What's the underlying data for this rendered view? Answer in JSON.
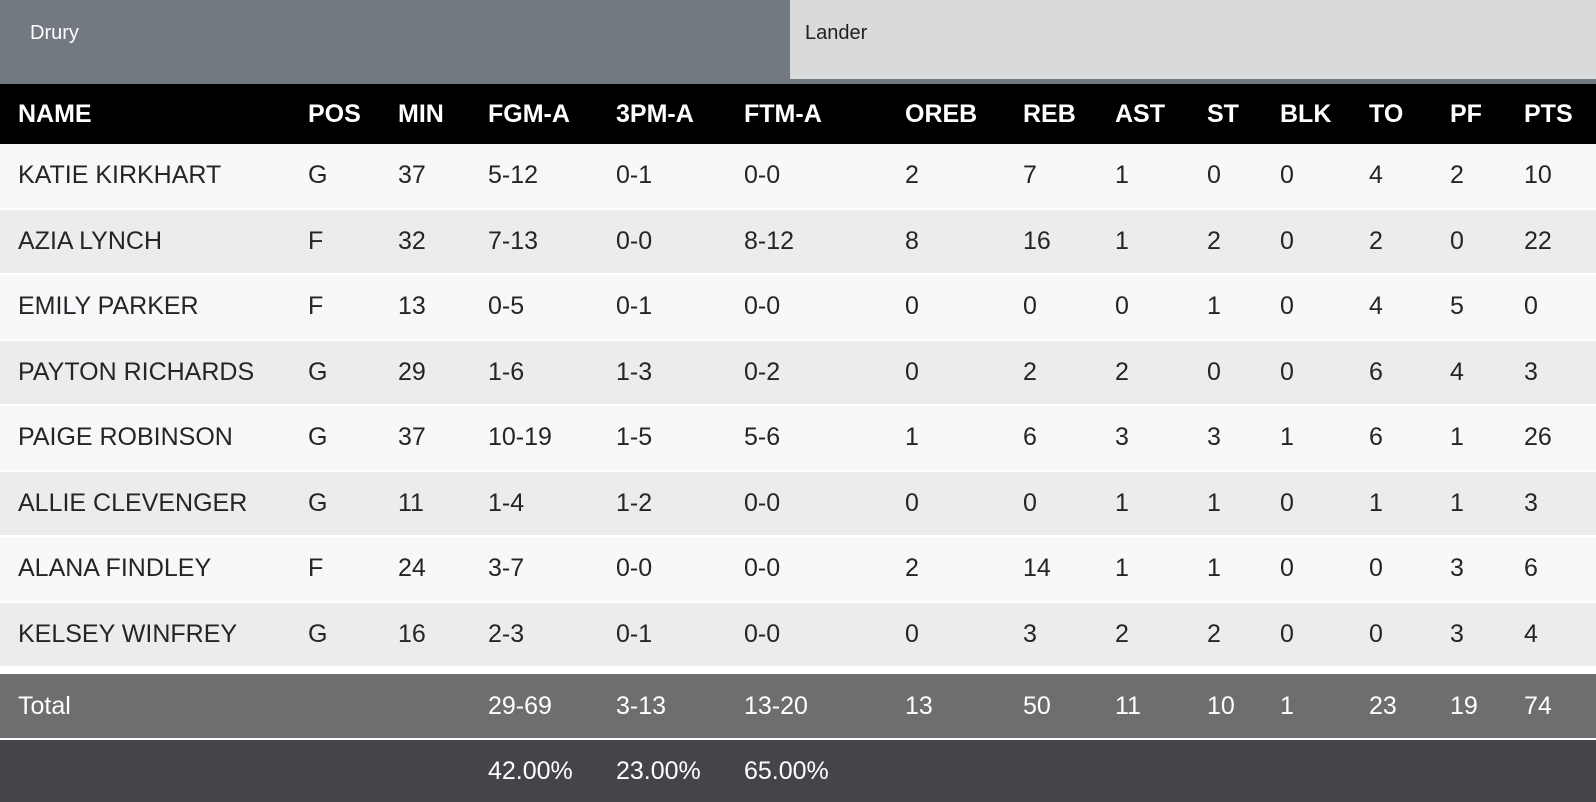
{
  "tabs": [
    {
      "label": "Drury",
      "active": true
    },
    {
      "label": "Lander",
      "active": false
    }
  ],
  "table": {
    "columns": [
      "NAME",
      "POS",
      "MIN",
      "FGM-A",
      "3PM-A",
      "FTM-A",
      "OREB",
      "REB",
      "AST",
      "ST",
      "BLK",
      "TO",
      "PF",
      "PTS"
    ],
    "players": [
      {
        "name": "KATIE KIRKHART",
        "pos": "G",
        "min": "37",
        "fgma": "5-12",
        "tpma": "0-1",
        "ftma": "0-0",
        "oreb": "2",
        "reb": "7",
        "ast": "1",
        "st": "0",
        "blk": "0",
        "to": "4",
        "pf": "2",
        "pts": "10"
      },
      {
        "name": "AZIA LYNCH",
        "pos": "F",
        "min": "32",
        "fgma": "7-13",
        "tpma": "0-0",
        "ftma": "8-12",
        "oreb": "8",
        "reb": "16",
        "ast": "1",
        "st": "2",
        "blk": "0",
        "to": "2",
        "pf": "0",
        "pts": "22"
      },
      {
        "name": "EMILY PARKER",
        "pos": "F",
        "min": "13",
        "fgma": "0-5",
        "tpma": "0-1",
        "ftma": "0-0",
        "oreb": "0",
        "reb": "0",
        "ast": "0",
        "st": "1",
        "blk": "0",
        "to": "4",
        "pf": "5",
        "pts": "0"
      },
      {
        "name": "PAYTON RICHARDS",
        "pos": "G",
        "min": "29",
        "fgma": "1-6",
        "tpma": "1-3",
        "ftma": "0-2",
        "oreb": "0",
        "reb": "2",
        "ast": "2",
        "st": "0",
        "blk": "0",
        "to": "6",
        "pf": "4",
        "pts": "3"
      },
      {
        "name": "PAIGE ROBINSON",
        "pos": "G",
        "min": "37",
        "fgma": "10-19",
        "tpma": "1-5",
        "ftma": "5-6",
        "oreb": "1",
        "reb": "6",
        "ast": "3",
        "st": "3",
        "blk": "1",
        "to": "6",
        "pf": "1",
        "pts": "26"
      },
      {
        "name": "ALLIE CLEVENGER",
        "pos": "G",
        "min": "11",
        "fgma": "1-4",
        "tpma": "1-2",
        "ftma": "0-0",
        "oreb": "0",
        "reb": "0",
        "ast": "1",
        "st": "1",
        "blk": "0",
        "to": "1",
        "pf": "1",
        "pts": "3"
      },
      {
        "name": "ALANA FINDLEY",
        "pos": "F",
        "min": "24",
        "fgma": "3-7",
        "tpma": "0-0",
        "ftma": "0-0",
        "oreb": "2",
        "reb": "14",
        "ast": "1",
        "st": "1",
        "blk": "0",
        "to": "0",
        "pf": "3",
        "pts": "6"
      },
      {
        "name": "KELSEY WINFREY",
        "pos": "G",
        "min": "16",
        "fgma": "2-3",
        "tpma": "0-1",
        "ftma": "0-0",
        "oreb": "0",
        "reb": "3",
        "ast": "2",
        "st": "2",
        "blk": "0",
        "to": "0",
        "pf": "3",
        "pts": "4"
      }
    ],
    "total": {
      "name": "Total",
      "fgma": "29-69",
      "tpma": "3-13",
      "ftma": "13-20",
      "oreb": "13",
      "reb": "50",
      "ast": "11",
      "st": "10",
      "blk": "1",
      "to": "23",
      "pf": "19",
      "pts": "74"
    },
    "percentages": {
      "fgma": "42.00%",
      "tpma": "23.00%",
      "ftma": "65.00%"
    }
  },
  "colors": {
    "tabbar_bg": "#727980",
    "inactive_tab_bg": "#d9dadb",
    "header_bg": "#000000",
    "row_light": "#f7f8f9",
    "row_dark": "#ebeced",
    "total_row_bg": "#6c6e70",
    "pct_row_bg": "#434548",
    "row_separator": "#ffffff"
  }
}
